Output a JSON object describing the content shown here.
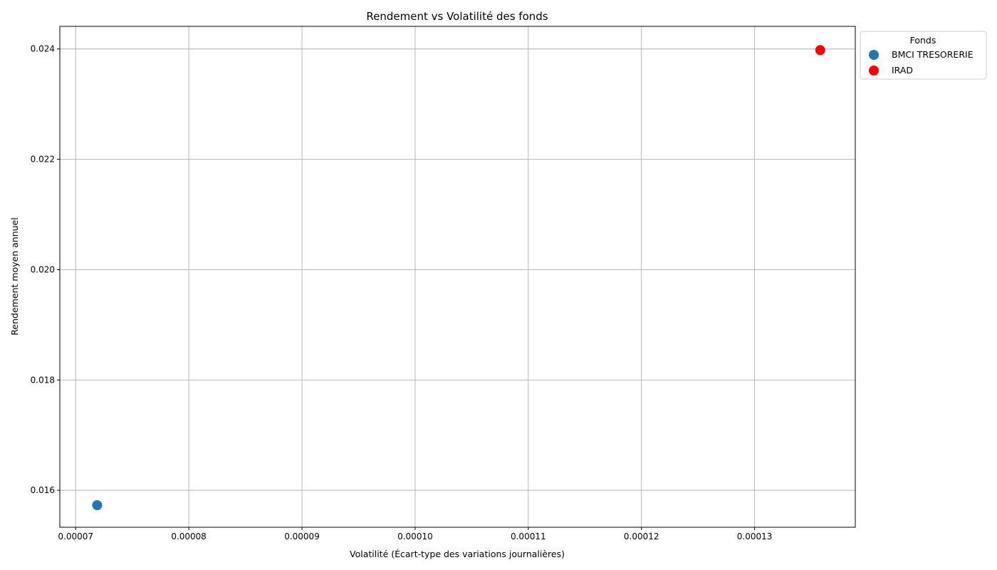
{
  "chart_data": {
    "type": "scatter",
    "title": "Rendement vs Volatilité des fonds",
    "xlabel": "Volatilité (Écart-type des variations journalières)",
    "ylabel": "Rendement moyen annuel",
    "xlim": [
      6.86e-05,
      0.0001389
    ],
    "ylim": [
      0.01533,
      0.02441
    ],
    "grid": true,
    "x_ticks": [
      7e-05,
      8e-05,
      9e-05,
      0.0001,
      0.00011,
      0.00012,
      0.00013
    ],
    "x_tick_labels": [
      "0.00007",
      "0.00008",
      "0.00009",
      "0.00010",
      "0.00011",
      "0.00012",
      "0.00013"
    ],
    "y_ticks": [
      0.016,
      0.018,
      0.02,
      0.022,
      0.024
    ],
    "y_tick_labels": [
      "0.016",
      "0.018",
      "0.020",
      "0.022",
      "0.024"
    ],
    "legend": {
      "title": "Fonds",
      "placement": "outside-top-right"
    },
    "series": [
      {
        "name": "BMCI TRESORERIE",
        "color": "#1f77b4",
        "x": [
          7.19e-05
        ],
        "y": [
          0.01573
        ]
      },
      {
        "name": "IRAD",
        "color": "#ff0000",
        "x": [
          0.0001358
        ],
        "y": [
          0.02398
        ]
      }
    ]
  }
}
